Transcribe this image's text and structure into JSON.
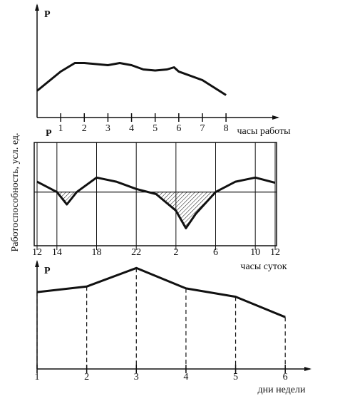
{
  "y_label": "Работоспособность, усл. ед.",
  "chart_data": [
    {
      "type": "line",
      "y_label": "P",
      "x_label": "часы работы",
      "x": [
        0,
        1,
        1.6,
        2,
        3,
        3.5,
        4,
        4.5,
        5,
        5.5,
        5.8,
        6,
        7,
        8
      ],
      "values": [
        25,
        43,
        51,
        51,
        49,
        51,
        49,
        45,
        44,
        45,
        47,
        43,
        35,
        21
      ],
      "xlim": [
        0,
        10.2
      ],
      "ylim": [
        0,
        100
      ],
      "xticks": [
        1,
        2,
        3,
        4,
        5,
        6,
        7,
        8
      ],
      "color": "#111"
    },
    {
      "type": "line",
      "y_label": "P",
      "x_label": "часы суток",
      "x": [
        0,
        2,
        3,
        4,
        6,
        8,
        10,
        12,
        14,
        15,
        16,
        18,
        20,
        22,
        24
      ],
      "values": [
        62,
        52,
        40,
        52,
        66,
        62,
        55,
        50,
        34,
        17,
        31,
        52,
        62,
        66,
        61
      ],
      "reference": 52,
      "hatch_below_reference": true,
      "box": true,
      "grid": true,
      "xlim": [
        0,
        24
      ],
      "ylim": [
        0,
        100
      ],
      "xticks": [
        {
          "value": 0,
          "label": "12"
        },
        {
          "value": 2,
          "label": "14"
        },
        {
          "value": 6,
          "label": "18"
        },
        {
          "value": 10,
          "label": "22"
        },
        {
          "value": 14,
          "label": "2"
        },
        {
          "value": 18,
          "label": "6"
        },
        {
          "value": 22,
          "label": "10"
        },
        {
          "value": 24,
          "label": "12"
        }
      ],
      "color": "#111"
    },
    {
      "type": "line",
      "y_label": "P",
      "x_label": "дни недели",
      "x": [
        1,
        2,
        3,
        4,
        5,
        6
      ],
      "values": [
        83,
        89,
        109,
        87,
        78,
        56
      ],
      "drop_lines": true,
      "xlim": [
        1,
        6.5
      ],
      "ylim": [
        0,
        110
      ],
      "xticks": [
        1,
        2,
        3,
        4,
        5,
        6
      ],
      "color": "#111"
    }
  ]
}
